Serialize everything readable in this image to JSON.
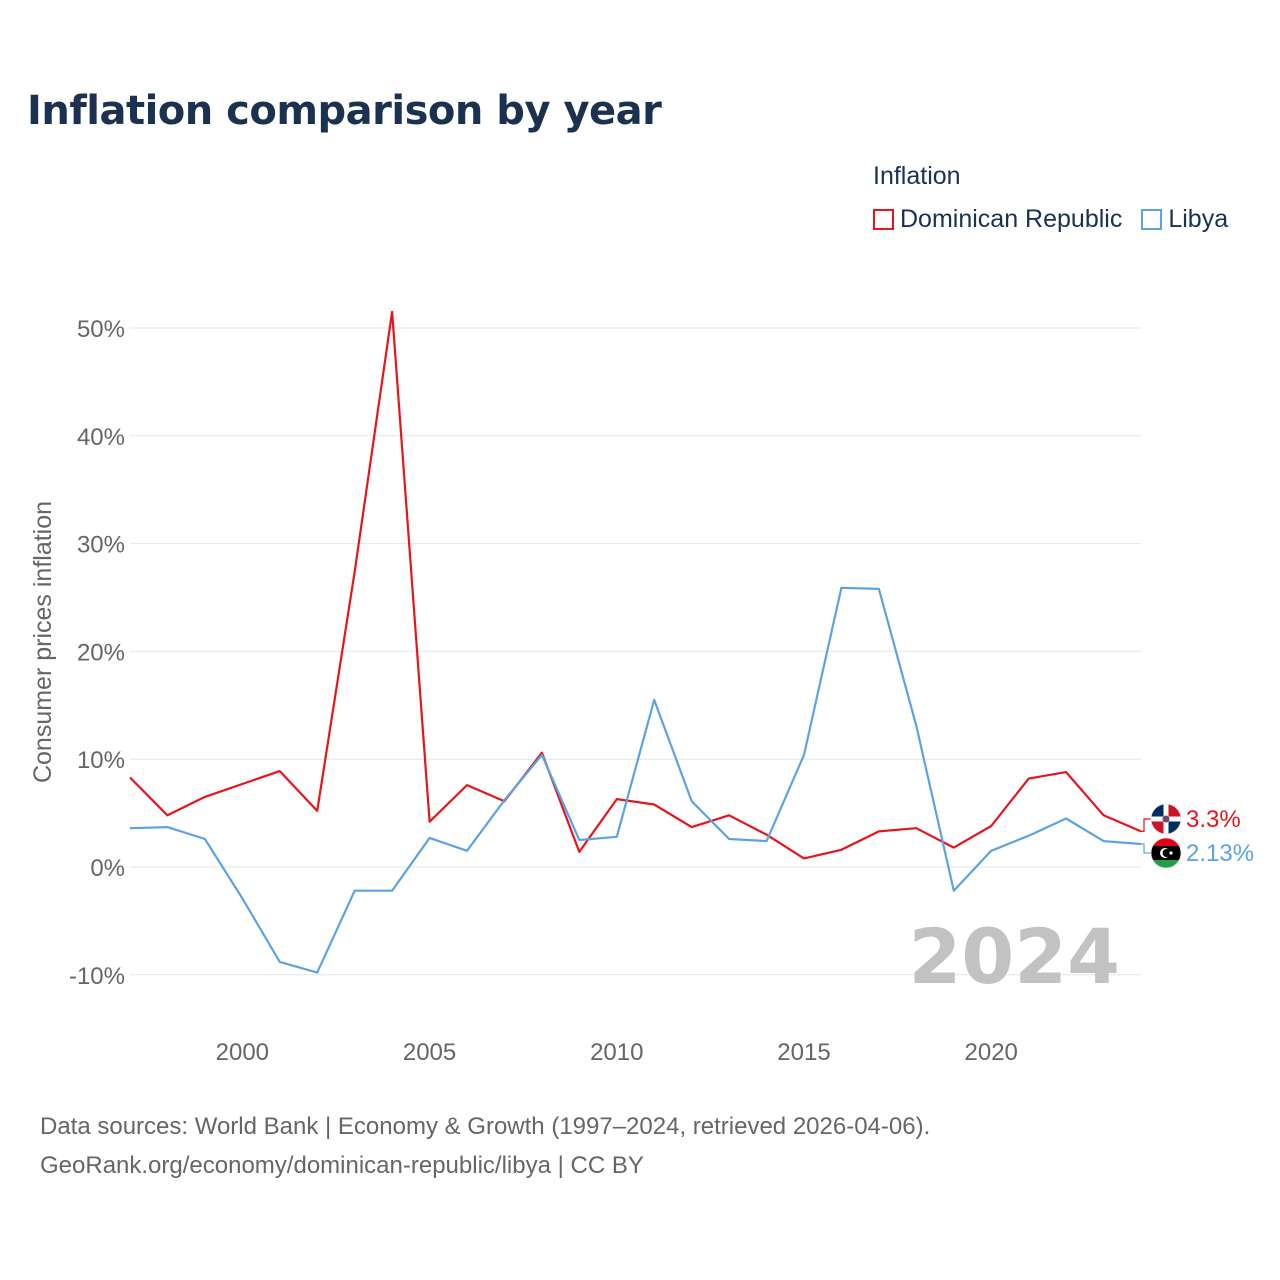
{
  "title": "Inflation comparison by year",
  "legend": {
    "title": "Inflation",
    "items": [
      {
        "label": "Dominican Republic",
        "color": "#e8141c"
      },
      {
        "label": "Libya",
        "color": "#5ba3e3"
      }
    ]
  },
  "year_watermark": "2024",
  "source": {
    "line1": "Data sources: World Bank | Economy & Growth (1997–2024, retrieved 2026-04-06).",
    "line2": "GeoRank.org/economy/dominican-republic/libya | CC BY"
  },
  "chart_data": {
    "type": "line",
    "title": "Inflation comparison by year",
    "xlabel": "",
    "ylabel": "Consumer prices inflation",
    "xlim": [
      1997,
      2024
    ],
    "ylim": [
      -12,
      54
    ],
    "x_ticks": [
      2000,
      2005,
      2010,
      2015,
      2020
    ],
    "y_ticks": [
      -10,
      0,
      10,
      20,
      30,
      40,
      50
    ],
    "y_tick_labels": [
      "-10%",
      "0%",
      "10%",
      "20%",
      "30%",
      "40%",
      "50%"
    ],
    "grid": true,
    "x": [
      1997,
      1998,
      1999,
      2000,
      2001,
      2002,
      2003,
      2004,
      2005,
      2006,
      2007,
      2008,
      2009,
      2010,
      2011,
      2012,
      2013,
      2014,
      2015,
      2016,
      2017,
      2018,
      2019,
      2020,
      2021,
      2022,
      2023,
      2024
    ],
    "series": [
      {
        "name": "Dominican Republic",
        "color": "#e8141c",
        "values": [
          8.3,
          4.8,
          6.5,
          7.7,
          8.9,
          5.2,
          27.4,
          51.5,
          4.2,
          7.6,
          6.1,
          10.6,
          1.4,
          6.3,
          5.8,
          3.7,
          4.8,
          3.0,
          0.8,
          1.6,
          3.3,
          3.6,
          1.8,
          3.8,
          8.2,
          8.8,
          4.8,
          3.3
        ],
        "end_label": "3.3%"
      },
      {
        "name": "Libya",
        "color": "#5ba3e3",
        "values": [
          3.6,
          3.7,
          2.6,
          -2.9,
          -8.8,
          -9.8,
          -2.2,
          -2.2,
          2.7,
          1.5,
          6.2,
          10.4,
          2.5,
          2.8,
          15.5,
          6.1,
          2.6,
          2.4,
          10.4,
          25.9,
          25.8,
          13.1,
          -2.2,
          1.5,
          2.9,
          4.5,
          2.4,
          2.13
        ],
        "end_label": "2.13%"
      }
    ]
  }
}
